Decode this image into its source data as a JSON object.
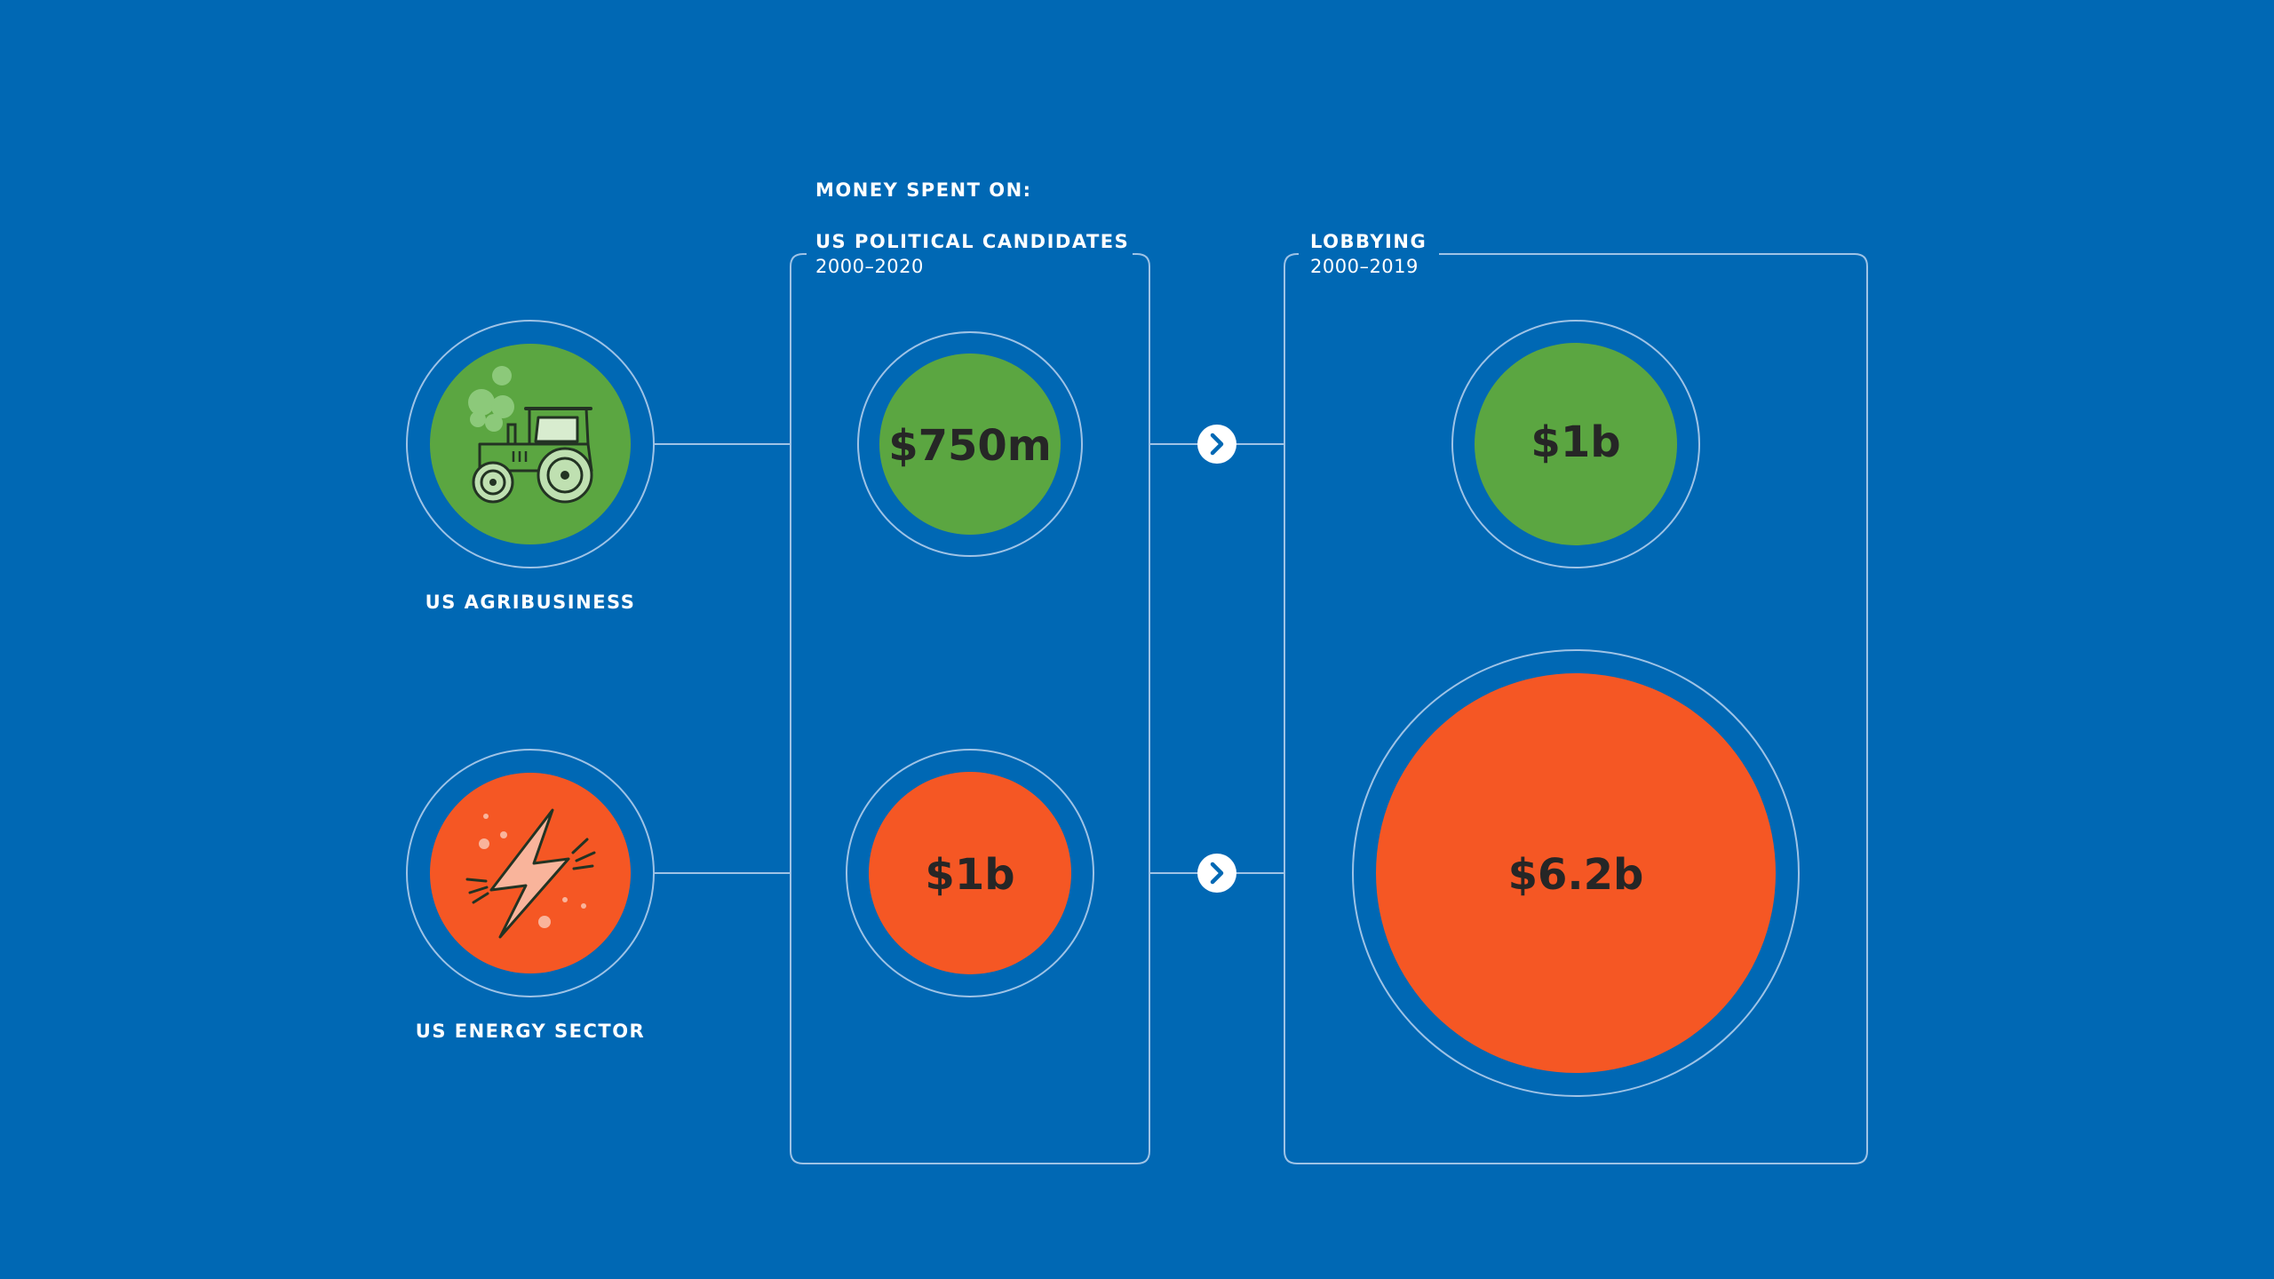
{
  "header": {
    "title": "MONEY SPENT ON:"
  },
  "columns": [
    {
      "title": "US POLITICAL CANDIDATES",
      "years": "2000–2020"
    },
    {
      "title": "LOBBYING",
      "years": "2000–2019"
    }
  ],
  "sectors": [
    {
      "label": "US AGRIBUSINESS",
      "icon": "tractor-icon",
      "color": "#5BA641"
    },
    {
      "label": "US ENERGY SECTOR",
      "icon": "lightning-bolt-icon",
      "color": "#F55724"
    }
  ],
  "values": {
    "agribusiness_candidates": "$750m",
    "agribusiness_lobbying": "$1b",
    "energy_candidates": "$1b",
    "energy_lobbying": "$6.2b"
  },
  "colors": {
    "background": "#0068B4",
    "green": "#5BA641",
    "orange": "#F55724",
    "value_text": "#262626"
  }
}
